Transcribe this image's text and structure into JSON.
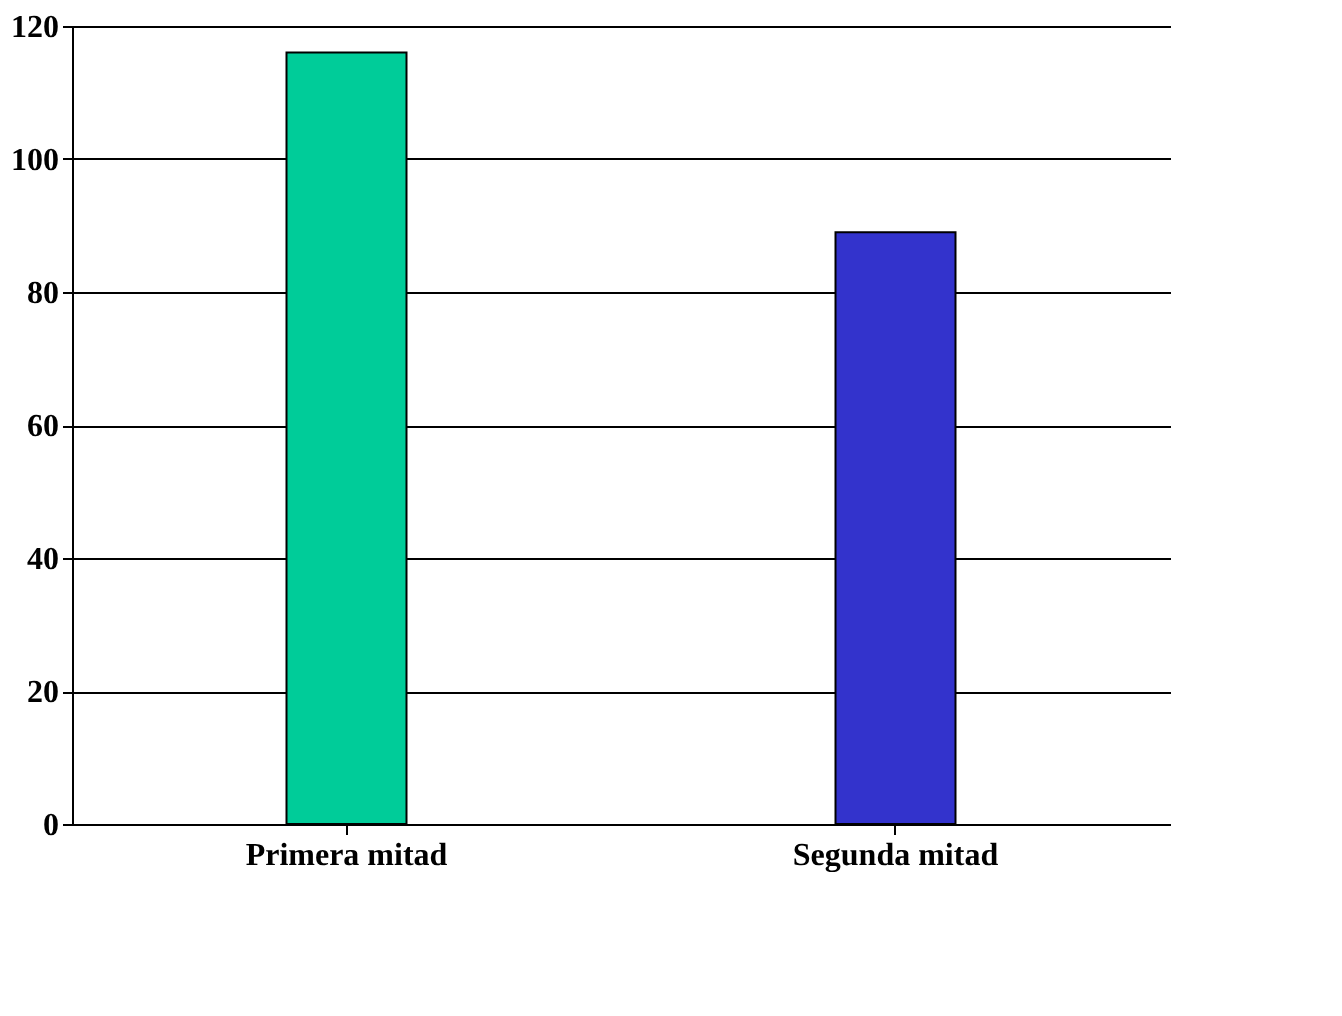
{
  "chart_data": {
    "type": "bar",
    "categories": [
      "Primera mitad",
      "Segunda mitad"
    ],
    "values": [
      116,
      89
    ],
    "colors": [
      "#00cc99",
      "#3333cc"
    ],
    "ylim": [
      0,
      120
    ],
    "yticks": [
      0,
      20,
      40,
      60,
      80,
      100,
      120
    ],
    "grid": "y"
  }
}
